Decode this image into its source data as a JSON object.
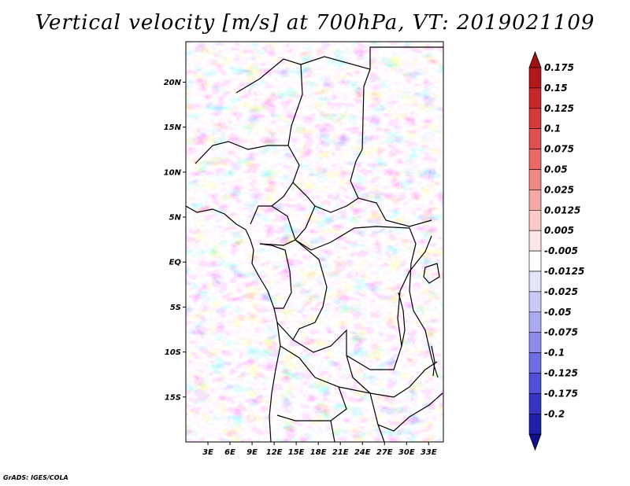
{
  "title": "Vertical velocity [m/s] at 700hPa, VT: 2019021109",
  "credit": "GrADS: IGES/COLA",
  "map": {
    "lat_labels": [
      "20N",
      "15N",
      "10N",
      "5N",
      "EQ",
      "5S",
      "10S",
      "15S"
    ],
    "lat_values": [
      20,
      15,
      10,
      5,
      0,
      -5,
      -10,
      -15
    ],
    "lon_labels": [
      "3E",
      "6E",
      "9E",
      "12E",
      "15E",
      "18E",
      "21E",
      "24E",
      "27E",
      "30E",
      "33E"
    ],
    "lon_values": [
      3,
      6,
      9,
      12,
      15,
      18,
      21,
      24,
      27,
      30,
      33
    ],
    "lon_range": [
      0,
      35
    ],
    "lat_range": [
      -20,
      24.5
    ],
    "field": "vertical velocity",
    "level": "700hPa",
    "valid_time": "2019021109"
  },
  "colorbar": {
    "labels": [
      "0.175",
      "0.15",
      "0.125",
      "0.1",
      "0.075",
      "0.05",
      "0.025",
      "0.0125",
      "0.005",
      "-0.005",
      "-0.0125",
      "-0.025",
      "-0.05",
      "-0.075",
      "-0.1",
      "-0.125",
      "-0.175",
      "-0.2"
    ],
    "colors": [
      "#b2181b",
      "#c8282b",
      "#d63a3a",
      "#e05050",
      "#ea6a68",
      "#f08886",
      "#f6a8a5",
      "#fbc9c6",
      "#fde6e4",
      "#ffffff",
      "#e6e6fb",
      "#c9c9f7",
      "#aaaaf2",
      "#8c8ced",
      "#6d6de6",
      "#4f4fd8",
      "#3535c2",
      "#2020a8",
      "#10108c"
    ],
    "top_arrow_color": "#a01010",
    "bottom_arrow_color": "#10108c"
  }
}
